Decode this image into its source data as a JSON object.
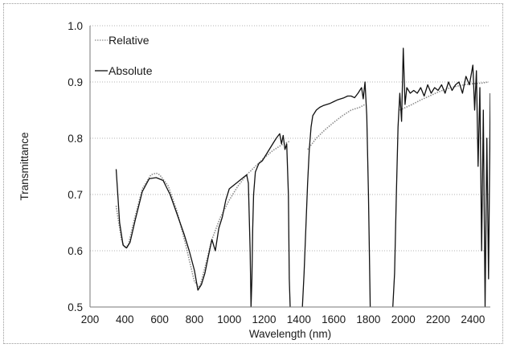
{
  "chart_data": {
    "type": "line",
    "title": "",
    "xlabel": "Wavelength (nm)",
    "ylabel": "Transmittance",
    "xlim": [
      200,
      2500
    ],
    "ylim": [
      0.5,
      1.0
    ],
    "x_ticks": [
      200,
      400,
      600,
      800,
      1000,
      1200,
      1400,
      1600,
      1800,
      2000,
      2200,
      2400
    ],
    "y_ticks": [
      0.5,
      0.6,
      0.7,
      0.8,
      0.9,
      1.0
    ],
    "y_tick_labels": [
      "0.5",
      "0.6",
      "0.7",
      "0.8",
      "0.9",
      "1.0"
    ],
    "grid": "horizontal dotted",
    "legend_position": "top-left",
    "series": [
      {
        "name": "Relative",
        "color": "#8c8c8c",
        "style": "dotted",
        "x": [
          350,
          380,
          400,
          420,
          450,
          500,
          550,
          580,
          600,
          650,
          700,
          750,
          800,
          830,
          860,
          900,
          950,
          1000,
          1050,
          1100,
          1150,
          1200,
          1250,
          1300,
          1350
        ],
        "y": [
          0.68,
          0.62,
          0.605,
          0.61,
          0.65,
          0.71,
          0.735,
          0.738,
          0.735,
          0.715,
          0.67,
          0.61,
          0.545,
          0.535,
          0.57,
          0.62,
          0.66,
          0.69,
          0.715,
          0.735,
          0.75,
          0.765,
          0.778,
          0.788,
          0.795
        ]
      },
      {
        "name": "Relative",
        "color": "#8c8c8c",
        "style": "dotted",
        "x": [
          1450,
          1500,
          1550,
          1600,
          1650,
          1700,
          1750,
          1780
        ],
        "y": [
          0.78,
          0.8,
          0.815,
          0.828,
          0.84,
          0.85,
          0.855,
          0.86
        ]
      },
      {
        "name": "Relative",
        "color": "#8c8c8c",
        "style": "dotted",
        "x": [
          1980,
          2050,
          2100,
          2150,
          2200,
          2250,
          2300,
          2350,
          2400,
          2450,
          2490
        ],
        "y": [
          0.85,
          0.86,
          0.868,
          0.875,
          0.882,
          0.888,
          0.892,
          0.895,
          0.897,
          0.898,
          0.9
        ]
      },
      {
        "name": "Absolute",
        "color": "#111111",
        "style": "solid",
        "x": [
          350,
          370,
          390,
          410,
          430,
          460,
          500,
          540,
          580,
          620,
          660,
          700,
          740,
          770,
          800,
          820,
          840,
          860,
          880,
          900,
          920,
          940,
          960,
          980,
          1000,
          1020,
          1040,
          1060,
          1080,
          1100,
          1110,
          1120,
          1125,
          1130,
          1135,
          1140,
          1150,
          1170,
          1190,
          1210,
          1230,
          1250,
          1270,
          1290,
          1300,
          1310,
          1320,
          1330,
          1340,
          1345,
          1350
        ],
        "y": [
          0.745,
          0.65,
          0.61,
          0.605,
          0.615,
          0.655,
          0.705,
          0.728,
          0.73,
          0.725,
          0.7,
          0.665,
          0.63,
          0.6,
          0.565,
          0.53,
          0.54,
          0.56,
          0.59,
          0.62,
          0.6,
          0.64,
          0.66,
          0.69,
          0.71,
          0.715,
          0.72,
          0.725,
          0.73,
          0.735,
          0.72,
          0.6,
          0.5,
          0.55,
          0.64,
          0.7,
          0.74,
          0.755,
          0.76,
          0.77,
          0.78,
          0.79,
          0.8,
          0.808,
          0.79,
          0.805,
          0.78,
          0.79,
          0.7,
          0.55,
          0.5
        ]
      },
      {
        "name": "Absolute",
        "color": "#111111",
        "style": "solid",
        "x": [
          1420,
          1430,
          1440,
          1450,
          1460,
          1470,
          1480,
          1500,
          1520,
          1540,
          1560,
          1580,
          1600,
          1620,
          1640,
          1660,
          1680,
          1700,
          1720,
          1740,
          1760,
          1770,
          1780,
          1790,
          1800,
          1810
        ],
        "y": [
          0.5,
          0.56,
          0.64,
          0.72,
          0.78,
          0.82,
          0.84,
          0.85,
          0.855,
          0.858,
          0.86,
          0.862,
          0.865,
          0.868,
          0.87,
          0.872,
          0.875,
          0.875,
          0.872,
          0.88,
          0.89,
          0.87,
          0.9,
          0.84,
          0.7,
          0.5
        ]
      },
      {
        "name": "Absolute",
        "color": "#111111",
        "style": "solid",
        "x": [
          1940,
          1950,
          1960,
          1970,
          1980,
          1990,
          2000,
          2010,
          2020,
          2040,
          2060,
          2080,
          2100,
          2120,
          2140,
          2160,
          2180,
          2200,
          2220,
          2240,
          2260,
          2280,
          2300,
          2320,
          2340,
          2360,
          2380,
          2400,
          2410,
          2420,
          2430,
          2440,
          2450,
          2460,
          2470,
          2480,
          2490,
          2500
        ],
        "y": [
          0.5,
          0.56,
          0.7,
          0.82,
          0.88,
          0.83,
          0.96,
          0.86,
          0.89,
          0.88,
          0.885,
          0.88,
          0.89,
          0.875,
          0.895,
          0.88,
          0.89,
          0.885,
          0.895,
          0.88,
          0.9,
          0.885,
          0.895,
          0.9,
          0.88,
          0.91,
          0.895,
          0.93,
          0.85,
          0.92,
          0.75,
          0.89,
          0.6,
          0.85,
          0.5,
          0.8,
          0.55,
          0.88
        ]
      }
    ]
  }
}
